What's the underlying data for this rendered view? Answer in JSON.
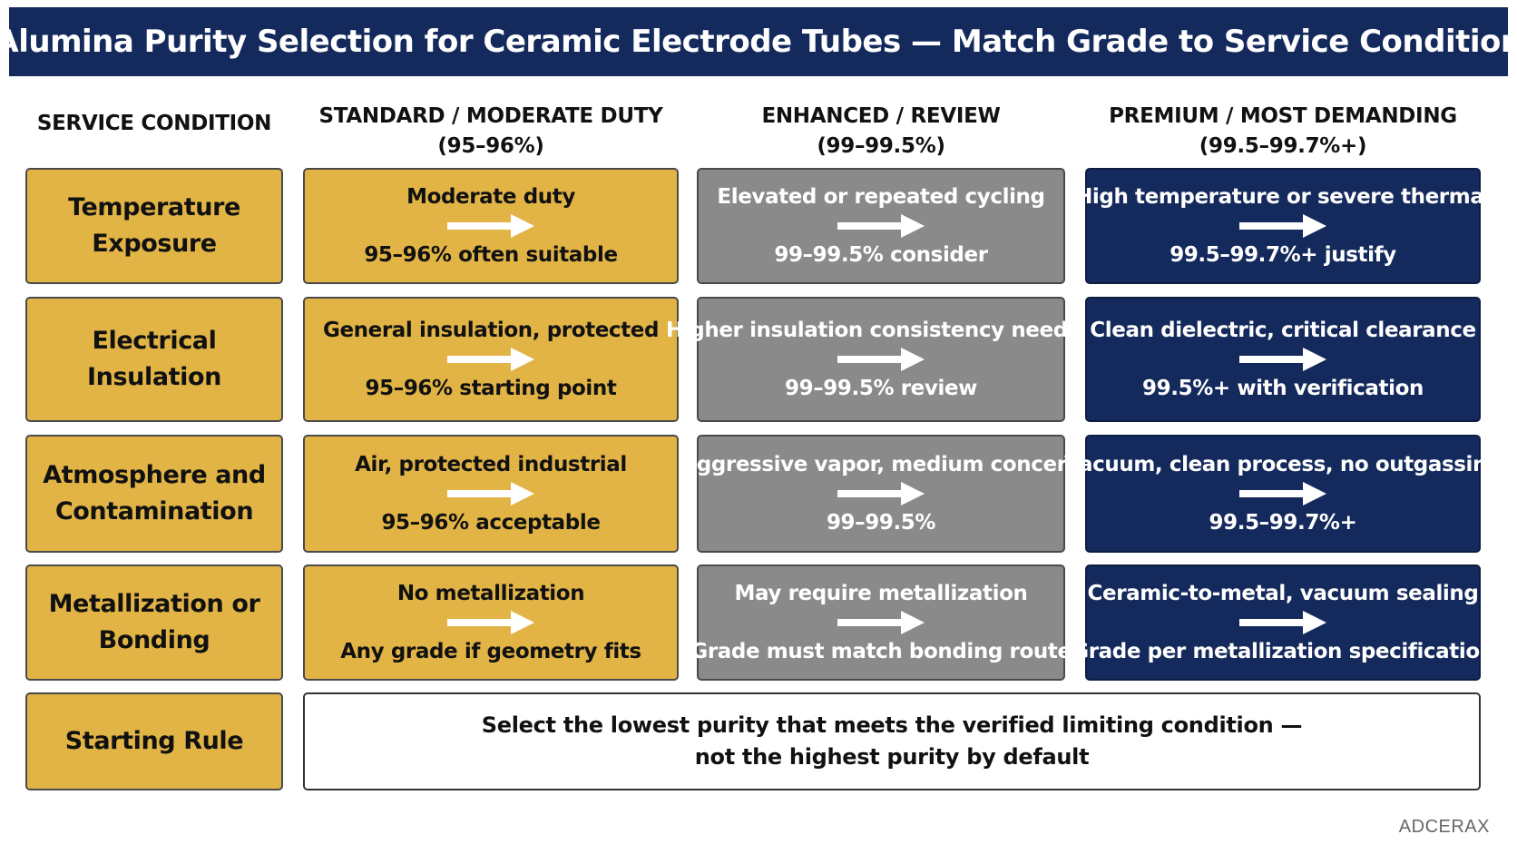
{
  "title": "Alumina Purity Selection for Ceramic Electrode Tubes — Match Grade to Service Condition",
  "headers": {
    "service": "SERVICE CONDITION",
    "standard": {
      "name": "STANDARD / MODERATE DUTY",
      "range": "(95–96%)"
    },
    "enhanced": {
      "name": "ENHANCED / REVIEW",
      "range": "(99–99.5%)"
    },
    "premium": {
      "name": "PREMIUM / MOST DEMANDING",
      "range": "(99.5–99.7%+)"
    }
  },
  "rows": [
    {
      "label": "Temperature Exposure",
      "standard": {
        "condition": "Moderate duty",
        "result": "95–96% often suitable"
      },
      "enhanced": {
        "condition": "Elevated or repeated cycling",
        "result": "99–99.5% consider"
      },
      "premium": {
        "condition": "High temperature or severe thermal",
        "result": "99.5–99.7%+ justify"
      }
    },
    {
      "label": "Electrical Insulation",
      "standard": {
        "condition": "General insulation, protected",
        "result": "95–96% starting point"
      },
      "enhanced": {
        "condition": "Higher insulation consistency needed",
        "result": "99–99.5% review"
      },
      "premium": {
        "condition": "Clean dielectric, critical clearance",
        "result": "99.5%+ with verification"
      }
    },
    {
      "label_line1": "Atmosphere and",
      "label_line2": "Contamination",
      "standard": {
        "condition": "Air, protected industrial",
        "result": "95–96% acceptable"
      },
      "enhanced": {
        "condition": "Aggressive vapor, medium concern",
        "result": "99–99.5%"
      },
      "premium": {
        "condition": "Vacuum, clean process, no outgassing",
        "result": "99.5–99.7%+"
      }
    },
    {
      "label_line1": "Metallization or",
      "label_line2": "Bonding",
      "standard": {
        "condition": "No metallization",
        "result": "Any grade if geometry fits"
      },
      "enhanced": {
        "condition": "May require metallization",
        "result": "Grade must match bonding route"
      },
      "premium": {
        "condition": "Ceramic-to-metal, vacuum sealing",
        "result": "Grade per metallization specification"
      }
    }
  ],
  "starting_rule": {
    "label": "Starting Rule",
    "line1": "Select the lowest purity that meets the verified limiting condition —",
    "line2": "not the highest purity by default"
  },
  "brand": "ADCERAX",
  "colors": {
    "navy": "#142a5c",
    "gold": "#e1b445",
    "gray": "#8a8a8a",
    "white": "#ffffff"
  },
  "icons": {
    "arrow": "right-arrow-icon"
  }
}
